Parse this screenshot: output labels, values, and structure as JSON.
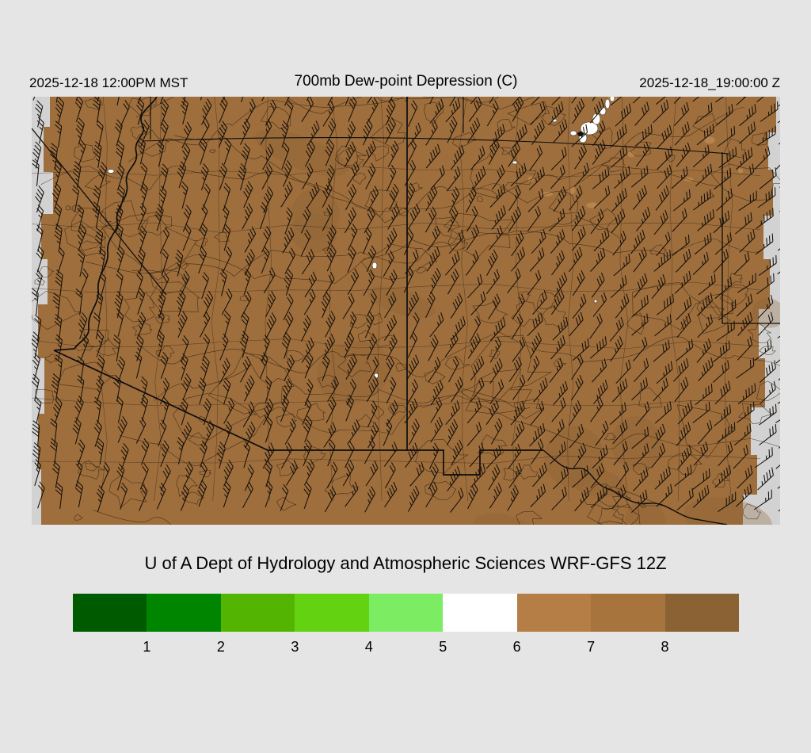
{
  "header": {
    "timestamp_local": "2025-12-18 12:00PM MST",
    "title": "700mb Dew-point Depression (C)",
    "timestamp_utc": "2025-12-18_19:00:00 Z"
  },
  "caption": "U of A Dept of Hydrology and Atmospheric Sciences WRF-GFS 12Z",
  "colorbar": {
    "tick_labels": [
      "1",
      "2",
      "3",
      "4",
      "5",
      "6",
      "7",
      "8"
    ],
    "segment_colors": [
      "#005a00",
      "#008500",
      "#53b502",
      "#63d311",
      "#7cec62",
      "#ffffff",
      "#b47e46",
      "#a7743e",
      "#8a6234"
    ]
  },
  "map": {
    "fill_color": "#9e6e3d",
    "dark_patch_color": "#8a6234",
    "light_patch_color": "#b8854d",
    "no_data_color": "#d2d2d2",
    "contour_color": "#241807",
    "county_line_color": "#2e2012",
    "border_color": "#0d0d0d",
    "barb_color": "#15100a",
    "white_patch_color": "#ffffff"
  },
  "chart_data": {
    "type": "heatmap",
    "title": "700mb Dew-point Depression (C)",
    "legend_values": [
      1,
      2,
      3,
      4,
      5,
      6,
      7,
      8
    ],
    "legend_colors": [
      "#005a00",
      "#008500",
      "#53b502",
      "#63d311",
      "#7cec62",
      "#ffffff",
      "#b47e46",
      "#a7743e",
      "#8a6234"
    ],
    "summary": "Dew-point depression 6-8+ C (brown shades) over nearly the entire AZ/NM domain; isolated pockets below 6 C (white) in the far north; overlaid wind barbs indicate north-northeasterly flow"
  }
}
